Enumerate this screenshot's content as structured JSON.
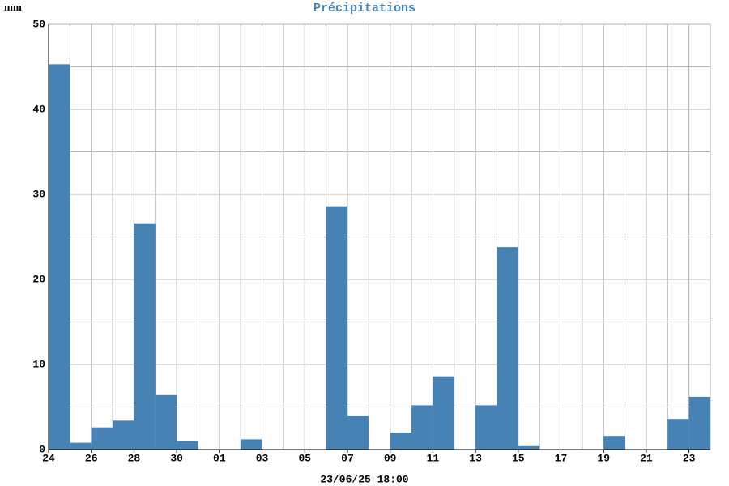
{
  "chart_data": {
    "type": "bar",
    "title": "Précipitations",
    "y_label": "mm",
    "x_label": "23/06/25 18:00",
    "categories": [
      "24",
      null,
      "26",
      null,
      "28",
      null,
      "30",
      null,
      "01",
      null,
      "03",
      null,
      "05",
      null,
      "07",
      null,
      "09",
      null,
      "11",
      null,
      "13",
      null,
      "15",
      null,
      "17",
      null,
      "19",
      null,
      "21",
      null,
      "23"
    ],
    "values": [
      45.3,
      0.8,
      2.6,
      3.4,
      26.6,
      6.4,
      1.0,
      0,
      0,
      1.2,
      0,
      0,
      0,
      28.6,
      4.0,
      0,
      2.0,
      5.2,
      8.6,
      0,
      5.2,
      23.8,
      0.4,
      0,
      0,
      0,
      1.6,
      0,
      0,
      3.6,
      6.2
    ],
    "color": "#4682b4",
    "ylim": [
      0,
      50
    ],
    "yticks": [
      0,
      10,
      20,
      30,
      40,
      50
    ],
    "grid": true
  }
}
